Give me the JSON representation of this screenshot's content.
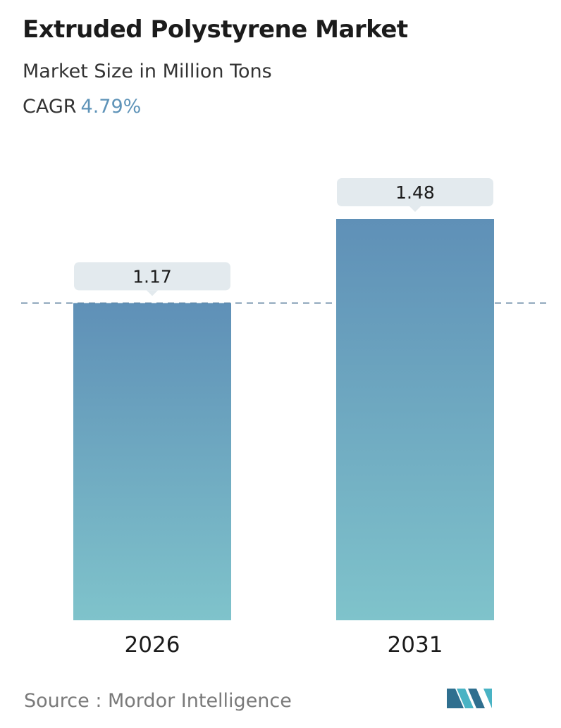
{
  "header": {
    "title": "Extruded Polystyrene Market",
    "subtitle": "Market Size in Million Tons",
    "cagr_label": "CAGR",
    "cagr_value": "4.79%"
  },
  "footer": {
    "source": "Source :  Mordor Intelligence"
  },
  "colors": {
    "bar_top": "#5f90b7",
    "bar_bottom": "#7fc3cb",
    "label_box": "#e3eaee",
    "dashed_line": "#5a7f9c",
    "cagr_accent": "#5e93b8",
    "logo_dark": "#2f6f8f",
    "logo_light": "#49b3c4"
  },
  "chart_data": {
    "type": "bar",
    "categories": [
      "2026",
      "2031"
    ],
    "values": [
      1.17,
      1.48
    ],
    "value_labels": [
      "1.17",
      "1.48"
    ],
    "reference_line": 1.17,
    "ylim": [
      0,
      1.48
    ],
    "grid": false,
    "legend": "none"
  }
}
